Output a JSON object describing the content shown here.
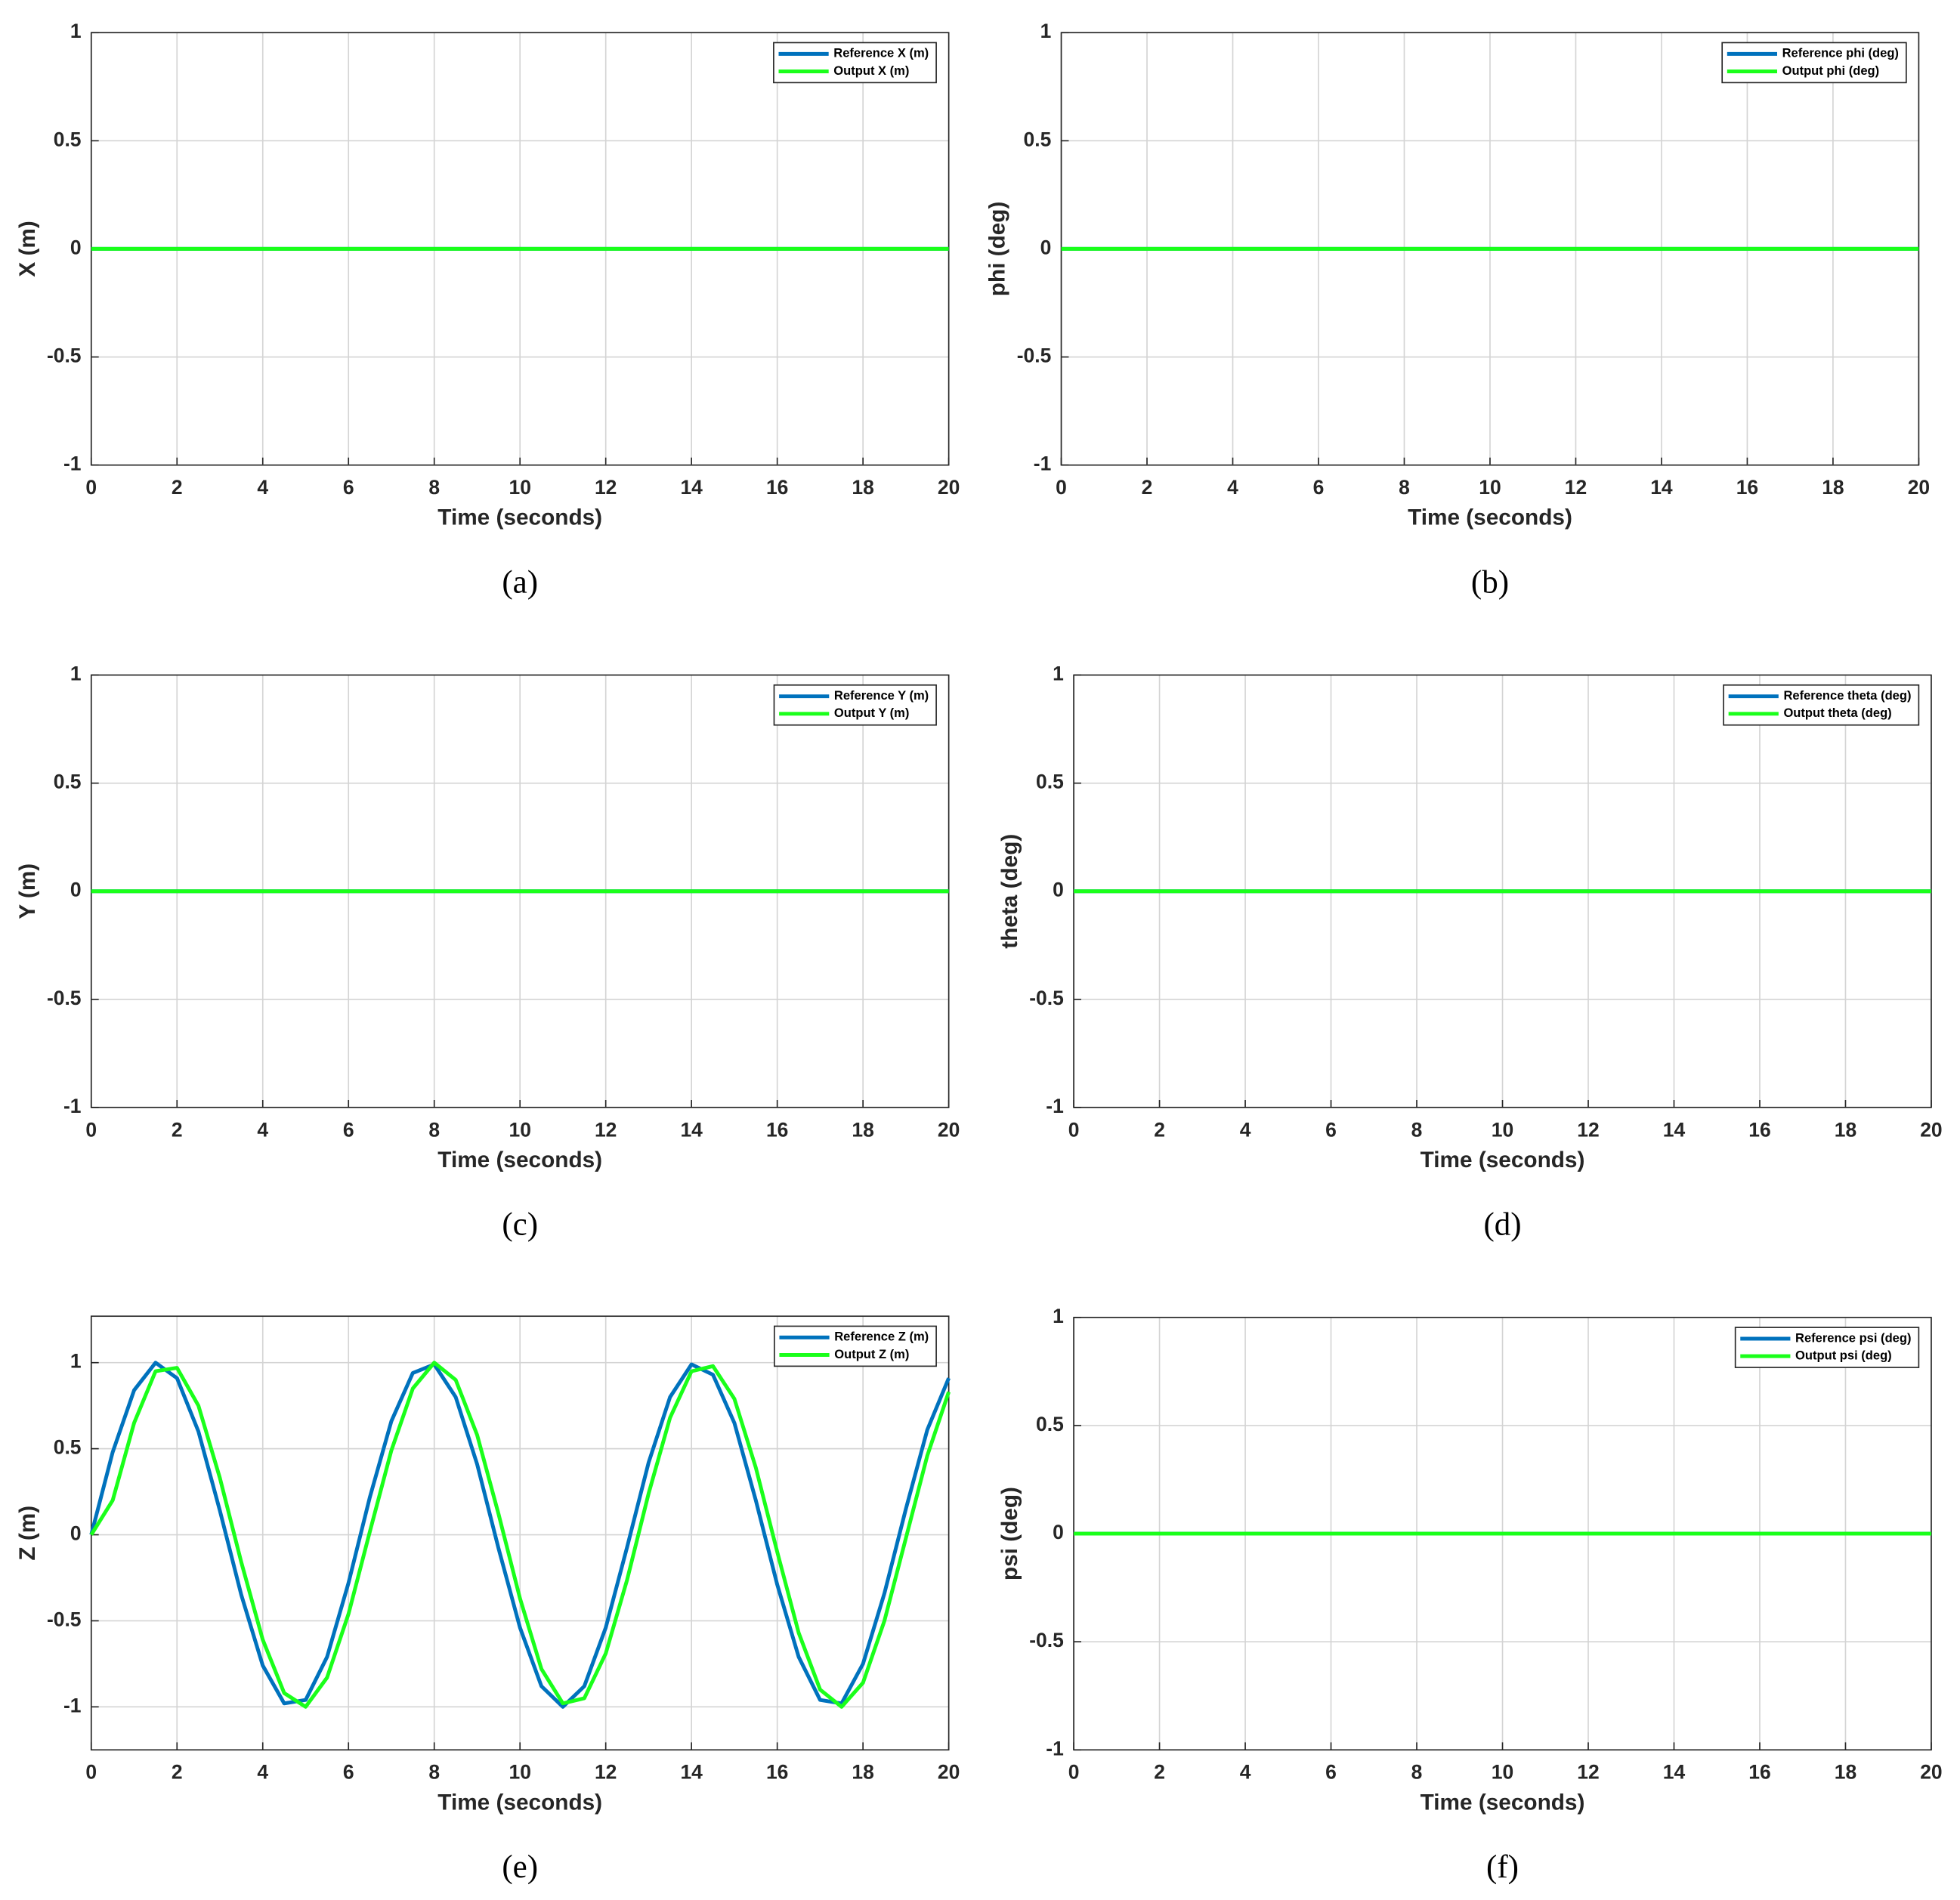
{
  "chart_data": [
    {
      "type": "line",
      "caption": "(a)",
      "xlabel": "Time (seconds)",
      "ylabel": "X (m)",
      "x": [
        0,
        20
      ],
      "series": [
        {
          "name": "Reference X (m)",
          "color": "#0072bd",
          "values": [
            0,
            0
          ]
        },
        {
          "name": "Output X (m)",
          "color": "#1aff1a",
          "values": [
            0,
            0
          ]
        }
      ],
      "xlim": [
        0,
        20
      ],
      "ylim": [
        -1,
        1
      ],
      "xticks": [
        0,
        2,
        4,
        6,
        8,
        10,
        12,
        14,
        16,
        18,
        20
      ],
      "yticks": [
        -1,
        -0.5,
        0,
        0.5,
        1
      ],
      "grid": true,
      "legend": "upper-right"
    },
    {
      "type": "line",
      "caption": "(b)",
      "xlabel": "Time (seconds)",
      "ylabel": "phi (deg)",
      "x": [
        0,
        20
      ],
      "series": [
        {
          "name": "Reference phi (deg)",
          "color": "#0072bd",
          "values": [
            0,
            0
          ]
        },
        {
          "name": "Output phi (deg)",
          "color": "#1aff1a",
          "values": [
            0,
            0
          ]
        }
      ],
      "xlim": [
        0,
        20
      ],
      "ylim": [
        -1,
        1
      ],
      "xticks": [
        0,
        2,
        4,
        6,
        8,
        10,
        12,
        14,
        16,
        18,
        20
      ],
      "yticks": [
        -1,
        -0.5,
        0,
        0.5,
        1
      ],
      "grid": true,
      "legend": "upper-right"
    },
    {
      "type": "line",
      "caption": "(c)",
      "xlabel": "Time (seconds)",
      "ylabel": "Y (m)",
      "x": [
        0,
        20
      ],
      "series": [
        {
          "name": "Reference Y (m)",
          "color": "#0072bd",
          "values": [
            0,
            0
          ]
        },
        {
          "name": "Output Y (m)",
          "color": "#1aff1a",
          "values": [
            0,
            0
          ]
        }
      ],
      "xlim": [
        0,
        20
      ],
      "ylim": [
        -1,
        1
      ],
      "xticks": [
        0,
        2,
        4,
        6,
        8,
        10,
        12,
        14,
        16,
        18,
        20
      ],
      "yticks": [
        -1,
        -0.5,
        0,
        0.5,
        1
      ],
      "grid": true,
      "legend": "upper-right"
    },
    {
      "type": "line",
      "caption": "(d)",
      "xlabel": "Time (seconds)",
      "ylabel": "theta (deg)",
      "x": [
        0,
        20
      ],
      "series": [
        {
          "name": "Reference theta (deg)",
          "color": "#0072bd",
          "values": [
            0,
            0
          ]
        },
        {
          "name": "Output theta (deg)",
          "color": "#1aff1a",
          "values": [
            0,
            0
          ]
        }
      ],
      "xlim": [
        0,
        20
      ],
      "ylim": [
        -1,
        1
      ],
      "xticks": [
        0,
        2,
        4,
        6,
        8,
        10,
        12,
        14,
        16,
        18,
        20
      ],
      "yticks": [
        -1,
        -0.5,
        0,
        0.5,
        1
      ],
      "grid": true,
      "legend": "upper-right"
    },
    {
      "type": "line",
      "caption": "(e)",
      "xlabel": "Time (seconds)",
      "ylabel": "Z (m)",
      "x": [
        0,
        0.5,
        1,
        1.5,
        2,
        2.5,
        3,
        3.5,
        4,
        4.5,
        5,
        5.5,
        6,
        6.5,
        7,
        7.5,
        8,
        8.5,
        9,
        9.5,
        10,
        10.5,
        11,
        11.5,
        12,
        12.5,
        13,
        13.5,
        14,
        14.5,
        15,
        15.5,
        16,
        16.5,
        17,
        17.5,
        18,
        18.5,
        19,
        19.5,
        20
      ],
      "series": [
        {
          "name": "Reference Z (m)",
          "color": "#0072bd",
          "values": [
            0,
            0.48,
            0.84,
            1.0,
            0.91,
            0.6,
            0.14,
            -0.35,
            -0.76,
            -0.98,
            -0.96,
            -0.71,
            -0.28,
            0.22,
            0.66,
            0.94,
            0.99,
            0.8,
            0.41,
            -0.08,
            -0.54,
            -0.88,
            -1.0,
            -0.88,
            -0.54,
            -0.07,
            0.42,
            0.8,
            0.99,
            0.93,
            0.65,
            0.2,
            -0.29,
            -0.71,
            -0.96,
            -0.98,
            -0.75,
            -0.34,
            0.15,
            0.61,
            0.91
          ]
        },
        {
          "name": "Output Z (m)",
          "color": "#1aff1a",
          "values": [
            0,
            0.2,
            0.65,
            0.95,
            0.97,
            0.75,
            0.33,
            -0.16,
            -0.61,
            -0.92,
            -1.0,
            -0.83,
            -0.46,
            0.02,
            0.49,
            0.85,
            1.0,
            0.9,
            0.58,
            0.12,
            -0.37,
            -0.78,
            -0.98,
            -0.95,
            -0.69,
            -0.26,
            0.24,
            0.68,
            0.95,
            0.98,
            0.79,
            0.39,
            -0.1,
            -0.57,
            -0.9,
            -1.0,
            -0.86,
            -0.5,
            -0.02,
            0.46,
            0.83
          ]
        }
      ],
      "xlim": [
        0,
        20
      ],
      "ylim": [
        -1.25,
        1.27
      ],
      "xticks": [
        0,
        2,
        4,
        6,
        8,
        10,
        12,
        14,
        16,
        18,
        20
      ],
      "yticks": [
        -1,
        -0.5,
        0,
        0.5,
        1
      ],
      "grid": true,
      "legend": "upper-right"
    },
    {
      "type": "line",
      "caption": "(f)",
      "xlabel": "Time (seconds)",
      "ylabel": "psi (deg)",
      "x": [
        0,
        20
      ],
      "series": [
        {
          "name": "Reference psi (deg)",
          "color": "#0072bd",
          "values": [
            0,
            0
          ]
        },
        {
          "name": "Output psi (deg)",
          "color": "#1aff1a",
          "values": [
            0,
            0
          ]
        }
      ],
      "xlim": [
        0,
        20
      ],
      "ylim": [
        -1,
        1
      ],
      "xticks": [
        0,
        2,
        4,
        6,
        8,
        10,
        12,
        14,
        16,
        18,
        20
      ],
      "yticks": [
        -1,
        -0.5,
        0,
        0.5,
        1
      ],
      "grid": true,
      "legend": "upper-right"
    }
  ]
}
